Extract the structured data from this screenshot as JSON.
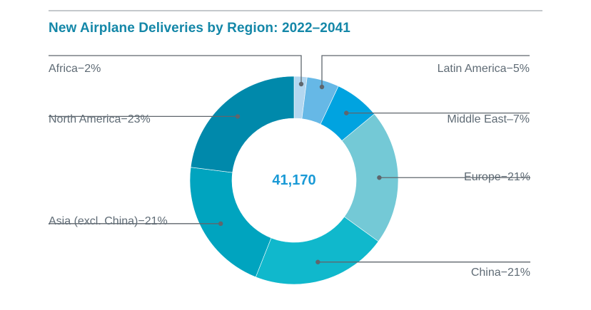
{
  "chart_data": {
    "type": "pie",
    "variant": "donut",
    "title": "New Airplane Deliveries by Region: 2022–2041",
    "center_label": "41,170",
    "total_deliveries": 41170,
    "unit": "percent",
    "start": "top, clockwise",
    "slices": [
      {
        "name": "Africa",
        "value": 2,
        "label": "Africa−2%",
        "color": "#b3d7f0",
        "label_side": "left"
      },
      {
        "name": "Latin America",
        "value": 5,
        "label": "Latin America−5%",
        "color": "#66b8e6",
        "label_side": "right"
      },
      {
        "name": "Middle East",
        "value": 7,
        "label": "Middle East–7%",
        "color": "#00a3e0",
        "label_side": "right"
      },
      {
        "name": "Europe",
        "value": 21,
        "label": "Europe−21%",
        "color": "#74c9d6",
        "label_side": "right"
      },
      {
        "name": "China",
        "value": 21,
        "label": "China−21%",
        "color": "#10b8cc",
        "label_side": "right"
      },
      {
        "name": "Asia (excl. China)",
        "value": 21,
        "label": "Asia (excl. China)−21%",
        "color": "#00a4bf",
        "label_side": "left"
      },
      {
        "name": "North America",
        "value": 23,
        "label": "North America−23%",
        "color": "#0089ab",
        "label_side": "left"
      }
    ]
  },
  "colors": {
    "title": "#1487a8",
    "center_value": "#1a9ad6",
    "label_text": "#5f6b75",
    "leader": "#5f666d"
  }
}
